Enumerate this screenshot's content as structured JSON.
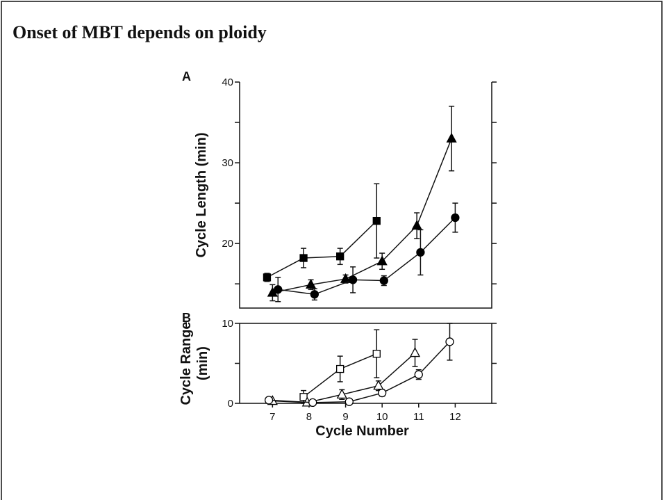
{
  "title": "Onset of MBT depends on ploidy",
  "chart_data": [
    {
      "type": "scatter",
      "panel": "A",
      "ylabel": [
        "Cycle Length (min)"
      ],
      "xlim": [
        6.1,
        13
      ],
      "ylim": [
        12,
        40
      ],
      "yticks": [
        20,
        30,
        40
      ],
      "minor_yticks": [
        15,
        25,
        35
      ],
      "right_axis_ticks": true,
      "series": [
        {
          "marker": "square",
          "filled": true,
          "color": "#000000",
          "x": [
            6.85,
            7.85,
            8.85,
            9.85
          ],
          "values": [
            15.8,
            18.2,
            18.4,
            22.8
          ],
          "errors": [
            0.5,
            1.2,
            1,
            4.6
          ]
        },
        {
          "marker": "triangle",
          "filled": true,
          "color": "#000000",
          "x": [
            7.0,
            8.05,
            9.0,
            10.0,
            10.95,
            11.9
          ],
          "values": [
            13.9,
            14.9,
            15.6,
            17.8,
            22.2,
            33
          ],
          "errors": [
            1,
            0.6,
            0.5,
            1,
            1.6,
            4
          ]
        },
        {
          "marker": "circle",
          "filled": true,
          "color": "#000000",
          "x": [
            7.15,
            8.15,
            9.2,
            10.05,
            11.05,
            12.0
          ],
          "values": [
            14.3,
            13.7,
            15.5,
            15.4,
            18.9,
            23.2
          ],
          "errors": [
            1.5,
            0.7,
            1.6,
            0.6,
            2.8,
            1.8
          ]
        }
      ]
    },
    {
      "type": "scatter",
      "panel": "B",
      "ylabel": [
        "Cycle Range",
        "(min)"
      ],
      "xlabel": "Cycle Number",
      "xlim": [
        6.1,
        13
      ],
      "xticks": [
        7,
        8,
        9,
        10,
        11,
        12
      ],
      "ylim": [
        0,
        10
      ],
      "yticks": [
        0,
        10
      ],
      "minor_yticks": [
        5
      ],
      "right_axis_ticks": true,
      "series": [
        {
          "marker": "square",
          "filled": false,
          "color": "#000000",
          "x": [
            7.85,
            8.85,
            9.85
          ],
          "values": [
            0.8,
            4.3,
            6.2
          ],
          "errors": [
            0.8,
            1.6,
            3
          ]
        },
        {
          "marker": "triangle",
          "filled": false,
          "color": "#000000",
          "x": [
            7.0,
            7.95,
            8.9,
            9.9,
            10.9
          ],
          "values": [
            0.3,
            0.1,
            1.1,
            2.2,
            6.3
          ],
          "errors": [
            0,
            0,
            0.6,
            0.6,
            1.7
          ]
        },
        {
          "marker": "circle",
          "filled": false,
          "color": "#000000",
          "x": [
            6.9,
            8.1,
            9.1,
            10.0,
            11.0,
            11.85
          ],
          "values": [
            0.4,
            0.1,
            0.2,
            1.3,
            3.6,
            7.7
          ],
          "errors": [
            0,
            0,
            0,
            0.4,
            0.6,
            2.3
          ]
        }
      ]
    }
  ]
}
